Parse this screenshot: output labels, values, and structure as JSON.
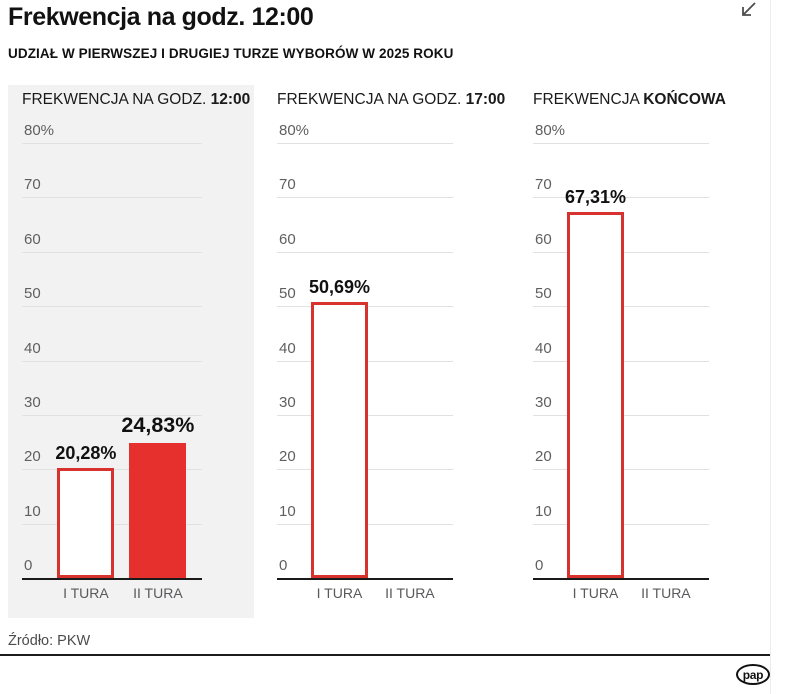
{
  "header": {
    "title": "Frekwencja na godz. 12:00",
    "subtitle": "UDZIAŁ W PIERWSZEJ I DRUGIEJ TURZE WYBORÓW W 2025 ROKU"
  },
  "footer": {
    "source": "Źródło: PKW",
    "logo": "pap"
  },
  "colors": {
    "red_fill": "#e6302e",
    "red_outline": "#d7322e",
    "panel_bg": "#f2f2f2",
    "grid": "#e1e1e1",
    "axis": "#1a1a1a",
    "tick_text": "#5f5f5f",
    "category_text": "#58595b",
    "value_text": "#111111"
  },
  "chart_data": [
    {
      "type": "bar",
      "title": {
        "regular": "FREKWENCJA NA GODZ.",
        "bold": "12:00"
      },
      "categories": [
        "I TURA",
        "II TURA"
      ],
      "values": [
        20.28,
        24.83
      ],
      "value_labels": [
        "20,28%",
        "24,83%"
      ],
      "bar_styles": [
        "outline",
        "fill"
      ],
      "label_emphasis": [
        false,
        true
      ],
      "ylim": [
        0,
        80
      ],
      "ytick_step": 10,
      "ytick_labels": [
        "0",
        "10",
        "20",
        "30",
        "40",
        "50",
        "60",
        "70",
        "80%"
      ],
      "grid": true,
      "panel_background": true
    },
    {
      "type": "bar",
      "title": {
        "regular": "FREKWENCJA NA GODZ.",
        "bold": "17:00"
      },
      "categories": [
        "I TURA",
        "II TURA"
      ],
      "values": [
        50.69,
        null
      ],
      "value_labels": [
        "50,69%",
        ""
      ],
      "bar_styles": [
        "outline",
        "none"
      ],
      "label_emphasis": [
        false,
        false
      ],
      "ylim": [
        0,
        80
      ],
      "ytick_step": 10,
      "ytick_labels": [
        "0",
        "10",
        "20",
        "30",
        "40",
        "50",
        "60",
        "70",
        "80%"
      ],
      "grid": true,
      "panel_background": false
    },
    {
      "type": "bar",
      "title": {
        "regular": "FREKWENCJA",
        "bold": "KOŃCOWA"
      },
      "categories": [
        "I TURA",
        "II TURA"
      ],
      "values": [
        67.31,
        null
      ],
      "value_labels": [
        "67,31%",
        ""
      ],
      "bar_styles": [
        "outline",
        "none"
      ],
      "label_emphasis": [
        false,
        false
      ],
      "ylim": [
        0,
        80
      ],
      "ytick_step": 10,
      "ytick_labels": [
        "0",
        "10",
        "20",
        "30",
        "40",
        "50",
        "60",
        "70",
        "80%"
      ],
      "grid": true,
      "panel_background": false
    }
  ]
}
